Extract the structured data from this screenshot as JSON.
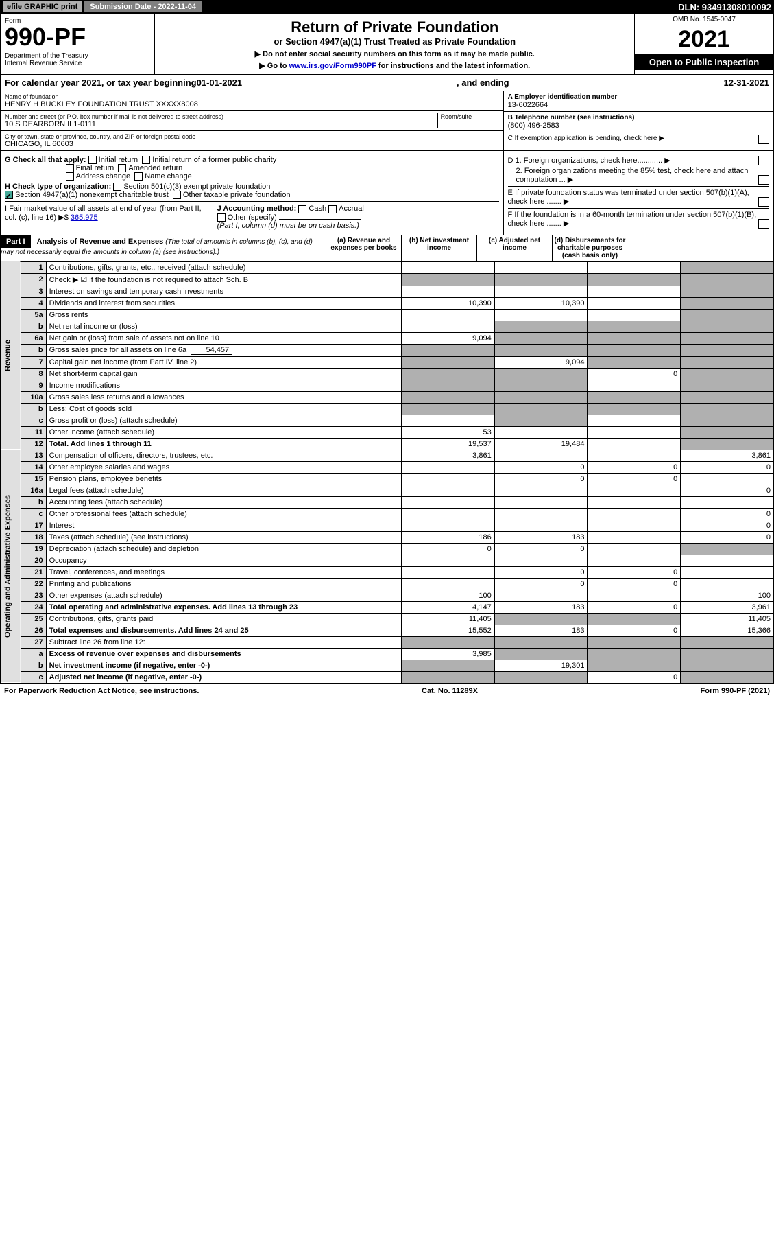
{
  "topbar": {
    "efile": "efile GRAPHIC print",
    "submission": "Submission Date - 2022-11-04",
    "dln": "DLN: 93491308010092"
  },
  "header": {
    "form_label": "Form",
    "form_number": "990-PF",
    "dept": "Department of the Treasury\nInternal Revenue Service",
    "title": "Return of Private Foundation",
    "subtitle": "or Section 4947(a)(1) Trust Treated as Private Foundation",
    "note1": "▶ Do not enter social security numbers on this form as it may be made public.",
    "note2_pre": "▶ Go to ",
    "note2_link": "www.irs.gov/Form990PF",
    "note2_post": " for instructions and the latest information.",
    "omb": "OMB No. 1545-0047",
    "year": "2021",
    "open": "Open to Public Inspection"
  },
  "calendar": {
    "pre": "For calendar year 2021, or tax year beginning ",
    "begin": "01-01-2021",
    "mid": ", and ending ",
    "end": "12-31-2021"
  },
  "entity": {
    "name_label": "Name of foundation",
    "name": "HENRY H BUCKLEY FOUNDATION TRUST XXXXX8008",
    "addr_label": "Number and street (or P.O. box number if mail is not delivered to street address)",
    "addr": "10 S DEARBORN IL1-0111",
    "room_label": "Room/suite",
    "city_label": "City or town, state or province, country, and ZIP or foreign postal code",
    "city": "CHICAGO, IL  60603",
    "ein_label": "A Employer identification number",
    "ein": "13-6022664",
    "phone_label": "B Telephone number (see instructions)",
    "phone": "(800) 496-2583",
    "c": "C If exemption application is pending, check here",
    "d1": "D 1. Foreign organizations, check here............",
    "d2": "2. Foreign organizations meeting the 85% test, check here and attach computation ...",
    "e": "E If private foundation status was terminated under section 507(b)(1)(A), check here .......",
    "f": "F If the foundation is in a 60-month termination under section 507(b)(1)(B), check here .......",
    "g_label": "G Check all that apply:",
    "g_opts": [
      "Initial return",
      "Final return",
      "Address change",
      "Initial return of a former public charity",
      "Amended return",
      "Name change"
    ],
    "h_label": "H Check type of organization:",
    "h1": "Section 501(c)(3) exempt private foundation",
    "h2": "Section 4947(a)(1) nonexempt charitable trust",
    "h3": "Other taxable private foundation",
    "i_label": "I Fair market value of all assets at end of year (from Part II, col. (c), line 16) ▶$",
    "i_val": "365,975",
    "j_label": "J Accounting method:",
    "j_opts": [
      "Cash",
      "Accrual"
    ],
    "j_other": "Other (specify)",
    "j_note": "(Part I, column (d) must be on cash basis.)"
  },
  "part1": {
    "hdr": "Part I",
    "title": "Analysis of Revenue and Expenses",
    "title_note": "(The total of amounts in columns (b), (c), and (d) may not necessarily equal the amounts in column (a) (see instructions).)",
    "cols": {
      "a": "(a) Revenue and expenses per books",
      "b": "(b) Net investment income",
      "c": "(c) Adjusted net income",
      "d": "(d) Disbursements for charitable purposes (cash basis only)"
    },
    "side_rev": "Revenue",
    "side_exp": "Operating and Administrative Expenses",
    "rows": [
      {
        "n": "1",
        "desc": "Contributions, gifts, grants, etc., received (attach schedule)",
        "a": "",
        "b": "",
        "c": "",
        "d": "",
        "dgrey": true
      },
      {
        "n": "2",
        "desc": "Check ▶ ☑ if the foundation is not required to attach Sch. B",
        "a": "",
        "b": "",
        "c": "",
        "d": "",
        "dgrey": true,
        "allgrey": true
      },
      {
        "n": "3",
        "desc": "Interest on savings and temporary cash investments",
        "a": "",
        "b": "",
        "c": "",
        "d": "",
        "dgrey": true
      },
      {
        "n": "4",
        "desc": "Dividends and interest from securities",
        "a": "10,390",
        "b": "10,390",
        "c": "",
        "d": "",
        "dgrey": true
      },
      {
        "n": "5a",
        "desc": "Gross rents",
        "a": "",
        "b": "",
        "c": "",
        "d": "",
        "dgrey": true
      },
      {
        "n": "b",
        "desc": "Net rental income or (loss)",
        "a": "",
        "b": "",
        "c": "",
        "d": "",
        "dgrey": true,
        "bcgrey": true
      },
      {
        "n": "6a",
        "desc": "Net gain or (loss) from sale of assets not on line 10",
        "a": "9,094",
        "b": "",
        "c": "",
        "d": "",
        "dgrey": true,
        "bcgrey": true
      },
      {
        "n": "b",
        "desc": "Gross sales price for all assets on line 6a",
        "inline": "54,457",
        "a": "",
        "b": "",
        "c": "",
        "d": "",
        "dgrey": true,
        "bcgrey": true,
        "agrey": true
      },
      {
        "n": "7",
        "desc": "Capital gain net income (from Part IV, line 2)",
        "a": "",
        "b": "9,094",
        "c": "",
        "d": "",
        "dgrey": true,
        "agrey": true,
        "cgrey": true
      },
      {
        "n": "8",
        "desc": "Net short-term capital gain",
        "a": "",
        "b": "",
        "c": "0",
        "d": "",
        "dgrey": true,
        "agrey": true,
        "bgrey": true
      },
      {
        "n": "9",
        "desc": "Income modifications",
        "a": "",
        "b": "",
        "c": "",
        "d": "",
        "dgrey": true,
        "agrey": true,
        "bgrey": true
      },
      {
        "n": "10a",
        "desc": "Gross sales less returns and allowances",
        "a": "",
        "b": "",
        "c": "",
        "d": "",
        "dgrey": true,
        "bcgrey": true,
        "agrey": true
      },
      {
        "n": "b",
        "desc": "Less: Cost of goods sold",
        "a": "",
        "b": "",
        "c": "",
        "d": "",
        "dgrey": true,
        "bcgrey": true,
        "agrey": true
      },
      {
        "n": "c",
        "desc": "Gross profit or (loss) (attach schedule)",
        "a": "",
        "b": "",
        "c": "",
        "d": "",
        "dgrey": true,
        "bgrey": true
      },
      {
        "n": "11",
        "desc": "Other income (attach schedule)",
        "a": "53",
        "b": "",
        "c": "",
        "d": "",
        "dgrey": true
      },
      {
        "n": "12",
        "desc": "Total. Add lines 1 through 11",
        "bold": true,
        "a": "19,537",
        "b": "19,484",
        "c": "",
        "d": "",
        "dgrey": true
      },
      {
        "n": "13",
        "desc": "Compensation of officers, directors, trustees, etc.",
        "a": "3,861",
        "b": "",
        "c": "",
        "d": "3,861"
      },
      {
        "n": "14",
        "desc": "Other employee salaries and wages",
        "a": "",
        "b": "0",
        "c": "0",
        "d": "0"
      },
      {
        "n": "15",
        "desc": "Pension plans, employee benefits",
        "a": "",
        "b": "0",
        "c": "0",
        "d": ""
      },
      {
        "n": "16a",
        "desc": "Legal fees (attach schedule)",
        "a": "",
        "b": "",
        "c": "",
        "d": "0"
      },
      {
        "n": "b",
        "desc": "Accounting fees (attach schedule)",
        "a": "",
        "b": "",
        "c": "",
        "d": ""
      },
      {
        "n": "c",
        "desc": "Other professional fees (attach schedule)",
        "a": "",
        "b": "",
        "c": "",
        "d": "0"
      },
      {
        "n": "17",
        "desc": "Interest",
        "a": "",
        "b": "",
        "c": "",
        "d": "0"
      },
      {
        "n": "18",
        "desc": "Taxes (attach schedule) (see instructions)",
        "a": "186",
        "b": "183",
        "c": "",
        "d": "0"
      },
      {
        "n": "19",
        "desc": "Depreciation (attach schedule) and depletion",
        "a": "0",
        "b": "0",
        "c": "",
        "d": "",
        "dgrey": true
      },
      {
        "n": "20",
        "desc": "Occupancy",
        "a": "",
        "b": "",
        "c": "",
        "d": ""
      },
      {
        "n": "21",
        "desc": "Travel, conferences, and meetings",
        "a": "",
        "b": "0",
        "c": "0",
        "d": ""
      },
      {
        "n": "22",
        "desc": "Printing and publications",
        "a": "",
        "b": "0",
        "c": "0",
        "d": ""
      },
      {
        "n": "23",
        "desc": "Other expenses (attach schedule)",
        "a": "100",
        "b": "",
        "c": "",
        "d": "100"
      },
      {
        "n": "24",
        "desc": "Total operating and administrative expenses. Add lines 13 through 23",
        "bold": true,
        "a": "4,147",
        "b": "183",
        "c": "0",
        "d": "3,961"
      },
      {
        "n": "25",
        "desc": "Contributions, gifts, grants paid",
        "a": "11,405",
        "b": "",
        "c": "",
        "d": "11,405",
        "bcgrey": true
      },
      {
        "n": "26",
        "desc": "Total expenses and disbursements. Add lines 24 and 25",
        "bold": true,
        "a": "15,552",
        "b": "183",
        "c": "0",
        "d": "15,366"
      },
      {
        "n": "27",
        "desc": "Subtract line 26 from line 12:",
        "a": "",
        "b": "",
        "c": "",
        "d": "",
        "allgrey": true
      },
      {
        "n": "a",
        "desc": "Excess of revenue over expenses and disbursements",
        "bold": true,
        "a": "3,985",
        "b": "",
        "c": "",
        "d": "",
        "bcgrey": true,
        "dgrey": true
      },
      {
        "n": "b",
        "desc": "Net investment income (if negative, enter -0-)",
        "bold": true,
        "a": "",
        "b": "19,301",
        "c": "",
        "d": "",
        "agrey": true,
        "cgrey": true,
        "dgrey": true
      },
      {
        "n": "c",
        "desc": "Adjusted net income (if negative, enter -0-)",
        "bold": true,
        "a": "",
        "b": "",
        "c": "0",
        "d": "",
        "agrey": true,
        "bgrey": true,
        "dgrey": true
      }
    ]
  },
  "footer": {
    "left": "For Paperwork Reduction Act Notice, see instructions.",
    "mid": "Cat. No. 11289X",
    "right": "Form 990-PF (2021)"
  },
  "colors": {
    "black": "#000000",
    "grey_hdr": "#b0b0b0",
    "grey_mid": "#808080",
    "grey_cell": "#b0b0b0",
    "grey_rownum": "#e0e0e0",
    "link": "#0000cc",
    "check_green": "#44aa99"
  }
}
